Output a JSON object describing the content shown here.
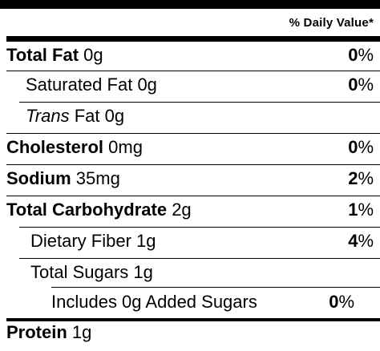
{
  "header": {
    "daily_value": "% Daily Value*"
  },
  "rows": {
    "total_fat": {
      "name": "Total Fat",
      "amount": "0g",
      "pct_num": "0",
      "pct_sign": "%"
    },
    "saturated_fat": {
      "name": "Saturated Fat",
      "amount": "0g",
      "pct_num": "0",
      "pct_sign": "%"
    },
    "trans_fat": {
      "name_italic": "Trans",
      "name_rest": "Fat",
      "amount": "0g"
    },
    "cholesterol": {
      "name": "Cholesterol",
      "amount": "0mg",
      "pct_num": "0",
      "pct_sign": "%"
    },
    "sodium": {
      "name": "Sodium",
      "amount": "35mg",
      "pct_num": "2",
      "pct_sign": "%"
    },
    "total_carb": {
      "name": "Total Carbohydrate",
      "amount": "2g",
      "pct_num": "1",
      "pct_sign": "%"
    },
    "fiber": {
      "name": "Dietary Fiber",
      "amount": "1g",
      "pct_num": "4",
      "pct_sign": "%"
    },
    "total_sugars": {
      "name": "Total Sugars",
      "amount": "1g"
    },
    "added_sugars": {
      "name": "Includes 0g Added Sugars",
      "pct_num": "0",
      "pct_sign": "%"
    },
    "protein": {
      "name": "Protein",
      "amount": "1g"
    }
  }
}
